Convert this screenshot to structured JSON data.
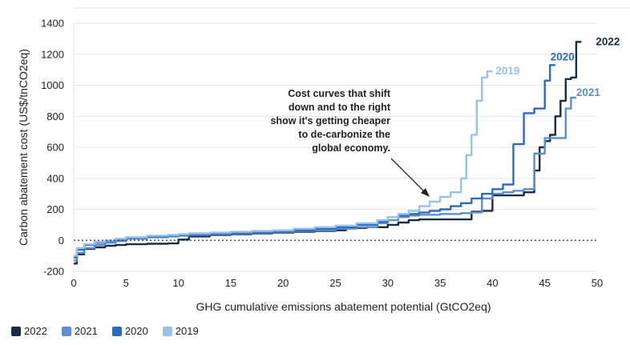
{
  "chart_data": {
    "type": "line",
    "xlabel": "GHG cumulative emissions abatement potential (GtCO2eq)",
    "ylabel": "Carbon abatement cost (US$/tnCO2eq)",
    "xlim": [
      0,
      50
    ],
    "ylim": [
      -200,
      1400
    ],
    "xticks": [
      "0",
      "5",
      "10",
      "15",
      "20",
      "25",
      "30",
      "35",
      "40",
      "45",
      "50"
    ],
    "yticks": [
      "-200",
      "0",
      "200",
      "400",
      "600",
      "800",
      "1000",
      "1200",
      "1400"
    ],
    "grid": "horizontal",
    "reference_line": 0,
    "annotation": [
      "Cost curves that shift",
      "down and to the right",
      "show it's getting cheaper",
      "to de-carbonize the",
      "global economy."
    ],
    "series": [
      {
        "name": "2022",
        "color": "#1b2b45",
        "x": [
          0,
          0.3,
          1,
          2,
          3,
          4,
          5,
          7,
          9,
          9.6,
          10,
          11,
          13,
          15,
          17,
          19,
          21,
          23,
          25,
          26,
          28,
          30,
          31,
          32,
          33,
          35,
          36,
          37,
          38,
          39,
          40,
          41,
          42,
          43,
          44,
          44.5,
          45,
          45.5,
          46,
          46.5,
          47,
          47.5,
          48,
          48.5
        ],
        "y": [
          -150,
          -90,
          -55,
          -45,
          -35,
          -30,
          -25,
          -22,
          -20,
          -20,
          5,
          25,
          35,
          40,
          45,
          50,
          55,
          60,
          65,
          80,
          85,
          100,
          115,
          130,
          135,
          135,
          135,
          135,
          185,
          190,
          290,
          290,
          290,
          310,
          450,
          600,
          640,
          680,
          800,
          900,
          1040,
          1050,
          1280,
          1280
        ]
      },
      {
        "name": "2021",
        "color": "#5b8fd0",
        "x": [
          0,
          0.3,
          1,
          2,
          3,
          4,
          5,
          7,
          9,
          10,
          11,
          13,
          15,
          17,
          19,
          21,
          23,
          25,
          27,
          29,
          30,
          31,
          32,
          33,
          35,
          36,
          37,
          38,
          39,
          40,
          41,
          42,
          43,
          44,
          45,
          46,
          46.5,
          47,
          47.5,
          48
        ],
        "y": [
          -130,
          -80,
          -50,
          -30,
          -15,
          -5,
          10,
          20,
          25,
          30,
          35,
          40,
          45,
          50,
          55,
          60,
          65,
          75,
          85,
          110,
          130,
          150,
          160,
          165,
          170,
          170,
          175,
          180,
          270,
          300,
          310,
          320,
          330,
          560,
          660,
          660,
          660,
          850,
          920,
          920
        ]
      },
      {
        "name": "2020",
        "color": "#2a6cc4",
        "x": [
          0,
          0.3,
          1,
          2,
          3,
          4,
          5,
          7,
          9,
          10,
          11,
          13,
          15,
          17,
          19,
          21,
          23,
          25,
          27,
          29,
          30,
          31,
          32,
          33,
          34,
          35,
          36,
          37,
          38,
          39,
          40,
          41,
          42,
          43,
          44,
          45,
          45.5,
          46
        ],
        "y": [
          -110,
          -60,
          -30,
          -15,
          -5,
          5,
          15,
          25,
          30,
          35,
          40,
          45,
          50,
          55,
          60,
          65,
          75,
          85,
          100,
          120,
          150,
          160,
          170,
          180,
          190,
          200,
          220,
          240,
          270,
          300,
          330,
          360,
          620,
          820,
          850,
          1030,
          1130,
          1130
        ]
      },
      {
        "name": "2019",
        "color": "#97c3ea",
        "x": [
          0,
          0.3,
          1,
          2,
          3,
          4,
          5,
          7,
          9,
          10,
          11,
          13,
          15,
          17,
          19,
          21,
          23,
          25,
          27,
          29,
          30,
          31,
          32,
          33,
          34,
          35,
          36,
          37,
          37.5,
          38,
          38.5,
          39,
          39.5,
          40
        ],
        "y": [
          -100,
          -50,
          -25,
          -10,
          0,
          10,
          20,
          30,
          35,
          40,
          45,
          50,
          55,
          60,
          65,
          75,
          85,
          95,
          110,
          130,
          150,
          170,
          190,
          220,
          250,
          280,
          310,
          400,
          550,
          680,
          900,
          1050,
          1090,
          1090
        ]
      }
    ]
  },
  "legend": [
    "2022",
    "2021",
    "2020",
    "2019"
  ]
}
